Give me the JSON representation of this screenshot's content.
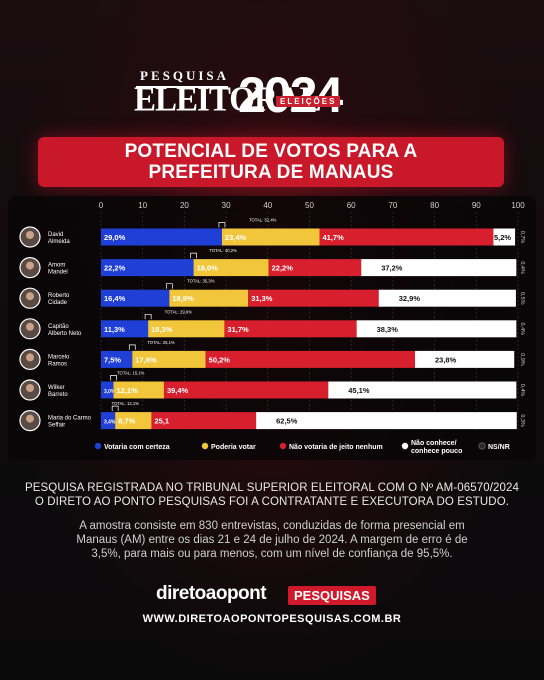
{
  "header": {
    "pesquisa": "PESQUISA",
    "eleitoral": "ELEITORAL",
    "year": "2024",
    "eleicoes": "ELEIÇÕES"
  },
  "banner": {
    "line1": "POTENCIAL DE VOTOS PARA A",
    "line2": "PREFEITURA DE MANAUS"
  },
  "colors": {
    "certeza": "#1f3fd6",
    "poderia": "#f2c63a",
    "nao_votaria": "#d71f2d",
    "nao_conhece": "#ffffff",
    "ns_nr": "#1a1a1a"
  },
  "chart_data": {
    "type": "bar",
    "stacked": true,
    "orientation": "horizontal",
    "xlim": [
      0,
      100
    ],
    "ticks": [
      "0",
      "10",
      "20",
      "30",
      "40",
      "50",
      "60",
      "70",
      "80",
      "90",
      "100"
    ],
    "categories": [
      "David Almeida",
      "Amom Mandel",
      "Roberto Cidade",
      "Capitão Alberto Neto",
      "Marcelo Ramos",
      "Wilker Barreto",
      "Maria do Carmo Seffair"
    ],
    "series": [
      {
        "name": "Votaria com certeza",
        "values": [
          29.0,
          22.2,
          16.4,
          11.3,
          7.5,
          3.0,
          3.4
        ],
        "labels": [
          "29,0%",
          "22,2%",
          "16,4%",
          "11,3%",
          "7,5%",
          "3,0%",
          "3,4%"
        ]
      },
      {
        "name": "Poderia votar",
        "values": [
          23.4,
          18.0,
          18.9,
          18.3,
          17.6,
          12.1,
          8.7
        ],
        "labels": [
          "23,4%",
          "18,0%",
          "18,9%",
          "18,3%",
          "17,6%",
          "12,1%",
          "8,7%"
        ]
      },
      {
        "name": "Não votaria de jeito nenhum",
        "values": [
          41.7,
          22.2,
          31.3,
          31.7,
          50.2,
          39.4,
          25.1
        ],
        "labels": [
          "41,7%",
          "22,2%",
          "31,3%",
          "31,7%",
          "50,2%",
          "39,4%",
          "25,1"
        ]
      },
      {
        "name": "Não conhece/ conhece pouco",
        "values": [
          5.2,
          37.2,
          32.9,
          38.3,
          23.8,
          45.1,
          62.5
        ],
        "labels": [
          "5,2%",
          "37,2%",
          "32,9%",
          "38,3%",
          "23,8%",
          "45,1%",
          "62,5%"
        ]
      },
      {
        "name": "NS/NR",
        "values": [
          0.7,
          0.4,
          0.5,
          0.4,
          0.9,
          0.4,
          0.3
        ],
        "labels": [
          "0,7%",
          "0,4%",
          "0,5%",
          "0,4%",
          "0,9%",
          "0,4%",
          "0,3%"
        ]
      }
    ],
    "totals": [
      "TOTAL: 52,4%",
      "TOTAL: 40,2%",
      "TOTAL: 35,3%",
      "TOTAL: 29,6%",
      "TOTAL: 25,1%",
      "TOTAL: 15,1%",
      "TOTAL: 12,1%"
    ],
    "legend": [
      "Votaria com certeza",
      "Poderia votar",
      "Não votaria de jeito nenhum",
      "Não conhece/ conhece pouco",
      "NS/NR"
    ]
  },
  "footer": {
    "line1": "PESQUISA REGISTRADA NO TRIBUNAL SUPERIOR ELEITORAL COM O Nº AM-06570/2024",
    "line2": "O DIRETO AO PONTO PESQUISAS FOI A CONTRATANTE E EXECUTORA DO ESTUDO.",
    "line3": "A amostra consiste em 830 entrevistas, conduzidas de forma presencial em",
    "line4": "Manaus (AM) entre os dias 21 e 24 de julho de 2024. A margem de erro é de",
    "line5": "3,5%, para mais ou para menos, com um nível de confiança de 95,5%.",
    "brand": "diretoaopont",
    "brand_tag": "PESQUISAS",
    "site": "WWW.DIRETOAOPONTOPESQUISAS.COM.BR"
  }
}
